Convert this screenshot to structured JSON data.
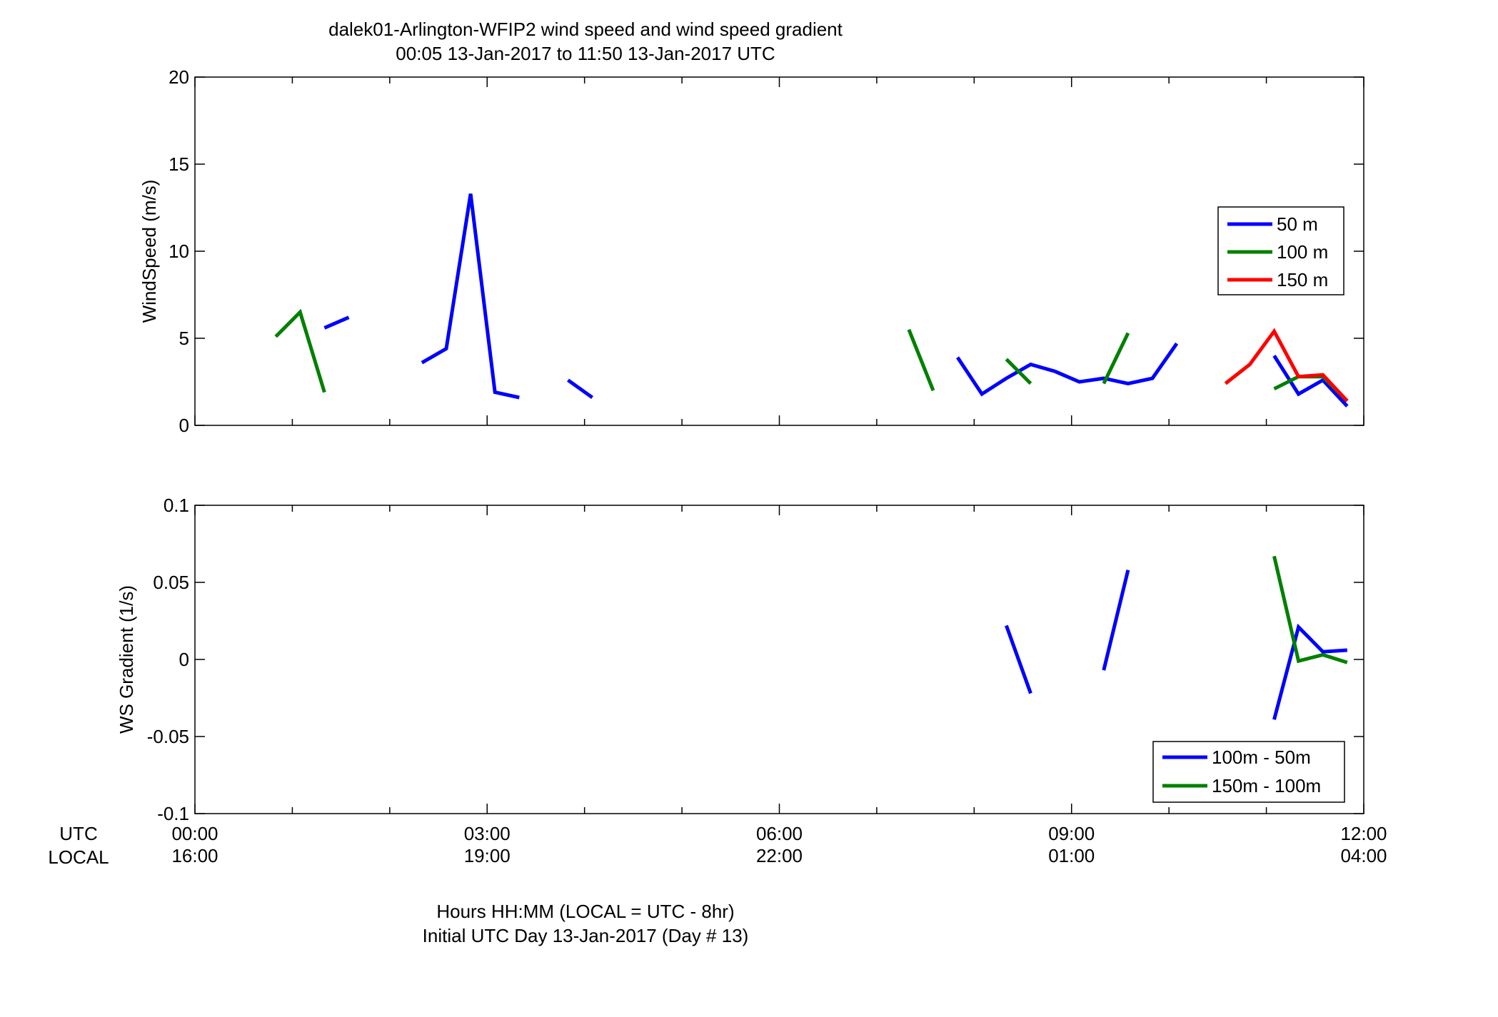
{
  "figure": {
    "title_line1": "dalek01-Arlington-WFIP2  wind speed and wind speed gradient",
    "title_line2": "00:05 13-Jan-2017 to 11:50 13-Jan-2017  UTC",
    "row_label_utc": "UTC",
    "row_label_local": "LOCAL",
    "xlabel_line1": "Hours HH:MM  (LOCAL = UTC - 8hr)",
    "xlabel_line2": "Initial UTC Day 13-Jan-2017 (Day # 13)",
    "x_ticks_utc": [
      "00:00",
      "03:00",
      "06:00",
      "09:00",
      "12:00"
    ],
    "x_ticks_local": [
      "16:00",
      "19:00",
      "22:00",
      "01:00",
      "04:00"
    ]
  },
  "chart_data": [
    {
      "type": "line",
      "title": "",
      "xlabel": "",
      "ylabel": "WindSpeed (m/s)",
      "xlim": [
        0,
        12
      ],
      "ylim": [
        0,
        20
      ],
      "y_ticks": [
        0,
        5,
        10,
        15,
        20
      ],
      "y_tick_labels": [
        "0",
        "5",
        "10",
        "15",
        "20"
      ],
      "x_ticks": [
        0,
        3,
        6,
        9,
        12
      ],
      "grid": false,
      "legend_position": "right",
      "series": [
        {
          "name": "50 m",
          "color": "#0000ff",
          "segments": [
            [
              [
                1.33,
                5.6
              ],
              [
                1.58,
                6.2
              ]
            ],
            [
              [
                2.33,
                3.6
              ],
              [
                2.58,
                4.4
              ],
              [
                2.83,
                13.3
              ],
              [
                3.08,
                1.9
              ],
              [
                3.33,
                1.6
              ]
            ],
            [
              [
                3.83,
                2.6
              ],
              [
                4.08,
                1.6
              ]
            ],
            [
              [
                7.83,
                3.9
              ],
              [
                8.08,
                1.8
              ],
              [
                8.33,
                2.7
              ],
              [
                8.58,
                3.5
              ],
              [
                8.83,
                3.1
              ],
              [
                9.08,
                2.5
              ],
              [
                9.33,
                2.7
              ],
              [
                9.58,
                2.4
              ],
              [
                9.83,
                2.7
              ],
              [
                10.08,
                4.7
              ]
            ],
            [
              [
                11.08,
                4.0
              ],
              [
                11.33,
                1.8
              ],
              [
                11.58,
                2.6
              ],
              [
                11.83,
                1.1
              ]
            ]
          ]
        },
        {
          "name": "100 m",
          "color": "#008000",
          "segments": [
            [
              [
                0.83,
                5.1
              ],
              [
                1.08,
                6.5
              ],
              [
                1.33,
                1.9
              ]
            ],
            [
              [
                7.33,
                5.5
              ],
              [
                7.58,
                2.0
              ]
            ],
            [
              [
                8.33,
                3.8
              ],
              [
                8.58,
                2.4
              ]
            ],
            [
              [
                9.33,
                2.4
              ],
              [
                9.58,
                5.3
              ]
            ],
            [
              [
                11.08,
                2.1
              ],
              [
                11.33,
                2.8
              ],
              [
                11.58,
                2.8
              ],
              [
                11.83,
                1.4
              ]
            ]
          ]
        },
        {
          "name": "150 m",
          "color": "#ff0000",
          "segments": [
            [
              [
                10.58,
                2.4
              ],
              [
                10.83,
                3.5
              ],
              [
                11.08,
                5.4
              ],
              [
                11.33,
                2.8
              ],
              [
                11.58,
                2.9
              ],
              [
                11.83,
                1.4
              ]
            ]
          ]
        }
      ]
    },
    {
      "type": "line",
      "title": "",
      "xlabel": "",
      "ylabel": "WS Gradient (1/s)",
      "xlim": [
        0,
        12
      ],
      "ylim": [
        -0.1,
        0.1
      ],
      "y_ticks": [
        -0.1,
        -0.05,
        0,
        0.05,
        0.1
      ],
      "y_tick_labels": [
        "-0.1",
        "-0.05",
        "0",
        "0.05",
        "0.1"
      ],
      "x_ticks": [
        0,
        3,
        6,
        9,
        12
      ],
      "grid": false,
      "legend_position": "bottom-right",
      "series": [
        {
          "name": "100m - 50m",
          "color": "#0000ff",
          "segments": [
            [
              [
                8.33,
                0.022
              ],
              [
                8.58,
                -0.022
              ]
            ],
            [
              [
                9.33,
                -0.007
              ],
              [
                9.58,
                0.058
              ]
            ],
            [
              [
                11.08,
                -0.039
              ],
              [
                11.33,
                0.021
              ],
              [
                11.58,
                0.005
              ],
              [
                11.83,
                0.006
              ]
            ]
          ]
        },
        {
          "name": "150m - 100m",
          "color": "#008000",
          "segments": [
            [
              [
                11.08,
                0.067
              ],
              [
                11.33,
                -0.001
              ],
              [
                11.58,
                0.003
              ],
              [
                11.83,
                -0.002
              ]
            ]
          ]
        }
      ]
    }
  ]
}
